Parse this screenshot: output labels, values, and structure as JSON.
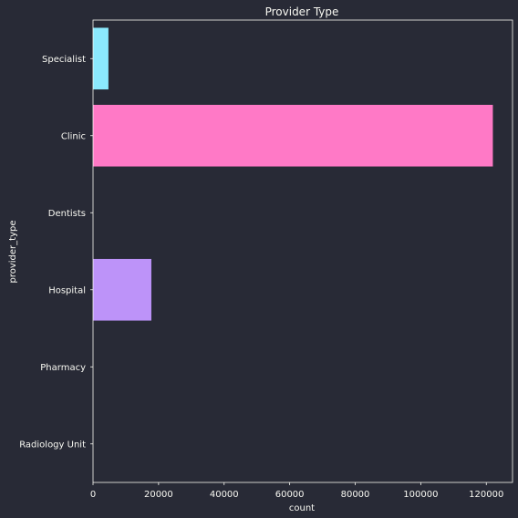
{
  "chart_data": {
    "type": "bar",
    "orientation": "horizontal",
    "title": "Provider Type",
    "xlabel": "count",
    "ylabel": "provider_type",
    "categories": [
      "Specialist",
      "Clinic",
      "Dentists",
      "Hospital",
      "Pharmacy",
      "Radiology Unit"
    ],
    "values": [
      4700,
      122000,
      0,
      17800,
      0,
      0
    ],
    "colors": [
      "#8be9fd",
      "#ff79c6",
      "#50fa7b",
      "#bd93f9",
      "#ffb86c",
      "#ff5555"
    ],
    "xlim": [
      0,
      128000
    ],
    "xticks": [
      0,
      20000,
      40000,
      60000,
      80000,
      100000,
      120000
    ],
    "grid": false
  },
  "theme": {
    "background": "#282a36",
    "text": "#f8f8f2",
    "axis": "#f8f8f2"
  }
}
